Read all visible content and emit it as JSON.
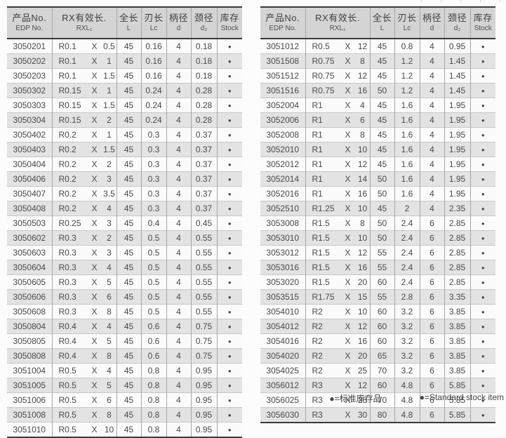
{
  "columns": {
    "edp": {
      "cn": "产品No.",
      "en": "EDP No."
    },
    "rxl": {
      "cn": "RX有效长.",
      "en": "RXL₁"
    },
    "length": {
      "cn": "全长",
      "en": "L"
    },
    "flute": {
      "cn": "刃长",
      "en": "Lc"
    },
    "shank": {
      "cn": "柄径",
      "en": "d"
    },
    "neck": {
      "cn": "颈径",
      "en": "d₂"
    },
    "stock": {
      "cn": "库存",
      "en": "Stock"
    }
  },
  "x_separator": "X",
  "stock_symbol": "●",
  "legend": {
    "cn": "●=标准库存品",
    "en": "●=Standard stock item"
  },
  "colors": {
    "page_bg": "#fcfcfc",
    "header_bg": "#d4d4d4",
    "row_bg": "#fbfbfb",
    "row_alt_bg": "#e3e3e3",
    "border_dark": "#3a3a3a",
    "grid_line": "#a5a5a5",
    "row_line": "#c8c8c8",
    "text": "#4a4a4a"
  },
  "tables": {
    "left": {
      "rows": [
        [
          "3050201",
          "R0.1",
          "0.5",
          "45",
          "0.16",
          "4",
          "0.18",
          "●"
        ],
        [
          "3050202",
          "R0.1",
          "1",
          "45",
          "0.16",
          "4",
          "0.18",
          "●"
        ],
        [
          "3050203",
          "R0.1",
          "1.5",
          "45",
          "0.16",
          "4",
          "0.18",
          "●"
        ],
        [
          "3050302",
          "R0.15",
          "1",
          "45",
          "0.24",
          "4",
          "0.28",
          "●"
        ],
        [
          "3050303",
          "R0.15",
          "1.5",
          "45",
          "0.24",
          "4",
          "0.28",
          "●"
        ],
        [
          "3050304",
          "R0.15",
          "2",
          "45",
          "0.24",
          "4",
          "0.28",
          "●"
        ],
        [
          "3050402",
          "R0.2",
          "1",
          "45",
          "0.3",
          "4",
          "0.37",
          "●"
        ],
        [
          "3050403",
          "R0.2",
          "1.5",
          "45",
          "0.3",
          "4",
          "0.37",
          "●"
        ],
        [
          "3050404",
          "R0.2",
          "2",
          "45",
          "0.3",
          "4",
          "0.37",
          "●"
        ],
        [
          "3050406",
          "R0.2",
          "3",
          "45",
          "0.3",
          "4",
          "0.37",
          "●"
        ],
        [
          "3050407",
          "R0.2",
          "3.5",
          "45",
          "0.3",
          "4",
          "0.37",
          "●"
        ],
        [
          "3050408",
          "R0.2",
          "4",
          "45",
          "0.3",
          "4",
          "0.37",
          "●"
        ],
        [
          "3050503",
          "R0.25",
          "3",
          "45",
          "0.4",
          "4",
          "0.45",
          "●"
        ],
        [
          "3050602",
          "R0.3",
          "2",
          "45",
          "0.5",
          "4",
          "0.55",
          "●"
        ],
        [
          "3050603",
          "R0.3",
          "3",
          "45",
          "0.5",
          "4",
          "0.55",
          "●"
        ],
        [
          "3050604",
          "R0.3",
          "4",
          "45",
          "0.5",
          "4",
          "0.55",
          "●"
        ],
        [
          "3050605",
          "R0.3",
          "5",
          "45",
          "0.5",
          "4",
          "0.55",
          "●"
        ],
        [
          "3050606",
          "R0.3",
          "6",
          "45",
          "0.5",
          "4",
          "0.55",
          "●"
        ],
        [
          "3050608",
          "R0.3",
          "8",
          "45",
          "0.5",
          "4",
          "0.55",
          "●"
        ],
        [
          "3050804",
          "R0.4",
          "4",
          "45",
          "0.6",
          "4",
          "0.75",
          "●"
        ],
        [
          "3050805",
          "R0.4",
          "5",
          "45",
          "0.6",
          "4",
          "0.75",
          "●"
        ],
        [
          "3050808",
          "R0.4",
          "8",
          "45",
          "0.6",
          "4",
          "0.75",
          "●"
        ],
        [
          "3051004",
          "R0.5",
          "4",
          "45",
          "0.8",
          "4",
          "0.95",
          "●"
        ],
        [
          "3051005",
          "R0.5",
          "5",
          "45",
          "0.8",
          "4",
          "0.95",
          "●"
        ],
        [
          "3051006",
          "R0.5",
          "6",
          "45",
          "0.8",
          "4",
          "0.95",
          "●"
        ],
        [
          "3051008",
          "R0.5",
          "8",
          "45",
          "0.8",
          "4",
          "0.95",
          "●"
        ],
        [
          "3051010",
          "R0.5",
          "10",
          "45",
          "0.8",
          "4",
          "0.95",
          "●"
        ]
      ]
    },
    "right": {
      "rows": [
        [
          "3051012",
          "R0.5",
          "12",
          "45",
          "0.8",
          "4",
          "0.95",
          "●"
        ],
        [
          "3051508",
          "R0.75",
          "8",
          "45",
          "1.2",
          "4",
          "1.45",
          "●"
        ],
        [
          "3051512",
          "R0.75",
          "12",
          "45",
          "1.2",
          "4",
          "1.45",
          "●"
        ],
        [
          "3051516",
          "R0.75",
          "16",
          "50",
          "1.2",
          "4",
          "1.45",
          "●"
        ],
        [
          "3052004",
          "R1",
          "4",
          "45",
          "1.6",
          "4",
          "1.95",
          "●"
        ],
        [
          "3052006",
          "R1",
          "6",
          "45",
          "1.6",
          "4",
          "1.95",
          "●"
        ],
        [
          "3052008",
          "R1",
          "8",
          "45",
          "1.6",
          "4",
          "1.95",
          "●"
        ],
        [
          "3052010",
          "R1",
          "10",
          "45",
          "1.6",
          "4",
          "1.95",
          "●"
        ],
        [
          "3052012",
          "R1",
          "12",
          "45",
          "1.6",
          "4",
          "1.95",
          "●"
        ],
        [
          "3052014",
          "R1",
          "14",
          "50",
          "1.6",
          "4",
          "1.95",
          "●"
        ],
        [
          "3052016",
          "R1",
          "16",
          "50",
          "1.6",
          "4",
          "1.95",
          "●"
        ],
        [
          "3052510",
          "R1.25",
          "10",
          "45",
          "2",
          "4",
          "2.35",
          "●"
        ],
        [
          "3053008",
          "R1.5",
          "8",
          "50",
          "2.4",
          "6",
          "2.85",
          "●"
        ],
        [
          "3053010",
          "R1.5",
          "10",
          "50",
          "2.4",
          "6",
          "2.85",
          "●"
        ],
        [
          "3053012",
          "R1.5",
          "12",
          "55",
          "2.4",
          "6",
          "2.85",
          "●"
        ],
        [
          "3053016",
          "R1.5",
          "16",
          "55",
          "2.4",
          "6",
          "2.85",
          "●"
        ],
        [
          "3053020",
          "R1.5",
          "20",
          "60",
          "2.4",
          "6",
          "2.85",
          "●"
        ],
        [
          "3053515",
          "R1.75",
          "15",
          "55",
          "2.8",
          "6",
          "3.35",
          "●"
        ],
        [
          "3054010",
          "R2",
          "10",
          "60",
          "3.2",
          "6",
          "3.85",
          "●"
        ],
        [
          "3054012",
          "R2",
          "12",
          "60",
          "3.2",
          "6",
          "3.85",
          "●"
        ],
        [
          "3054016",
          "R2",
          "16",
          "60",
          "3.2",
          "6",
          "3.85",
          "●"
        ],
        [
          "3054020",
          "R2",
          "20",
          "65",
          "3.2",
          "6",
          "3.85",
          "●"
        ],
        [
          "3054025",
          "R2",
          "25",
          "70",
          "3.2",
          "6",
          "3.85",
          "●"
        ],
        [
          "3056012",
          "R3",
          "12",
          "60",
          "4.8",
          "6",
          "5.85",
          "●"
        ],
        [
          "3056025",
          "R3",
          "25",
          "70",
          "4.8",
          "6",
          "5.85",
          "●"
        ],
        [
          "3056030",
          "R3",
          "30",
          "80",
          "4.8",
          "6",
          "5.85",
          "●"
        ]
      ]
    }
  }
}
